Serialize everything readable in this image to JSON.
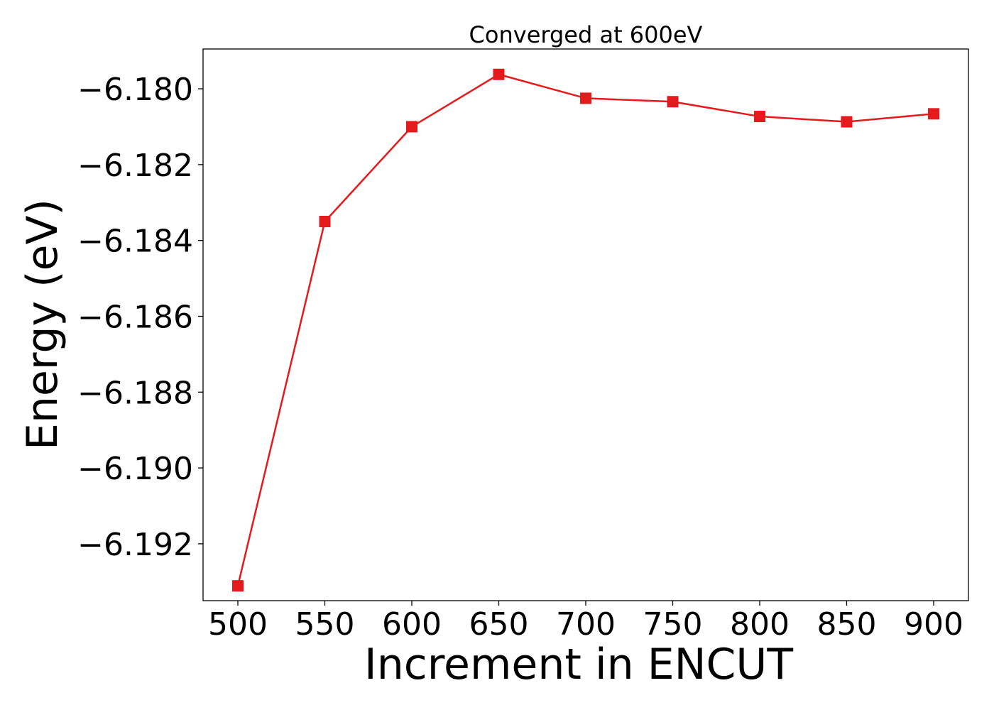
{
  "chart_data": {
    "type": "line",
    "title": "Converged at 600eV",
    "xlabel": "Increment in ENCUT",
    "ylabel": "Energy (eV)",
    "x": [
      500,
      550,
      600,
      650,
      700,
      750,
      800,
      850,
      900
    ],
    "series": [
      {
        "values": [
          -6.19311,
          -6.1835,
          -6.181,
          -6.17962,
          -6.18025,
          -6.18034,
          -6.18073,
          -6.18087,
          -6.18066
        ],
        "color": "#e41a1c",
        "marker": "square"
      }
    ],
    "xticks": [
      500,
      550,
      600,
      650,
      700,
      750,
      800,
      850,
      900
    ],
    "xtick_labels": [
      "500",
      "550",
      "600",
      "650",
      "700",
      "750",
      "800",
      "850",
      "900"
    ],
    "yticks": [
      -6.18,
      -6.182,
      -6.184,
      -6.186,
      -6.188,
      -6.19,
      -6.192
    ],
    "ytick_labels": [
      "−6.180",
      "−6.182",
      "−6.184",
      "−6.186",
      "−6.188",
      "−6.190",
      "−6.192"
    ],
    "xlim": [
      480,
      920
    ],
    "ylim": [
      -6.1935,
      -6.17895
    ],
    "grid": false,
    "legend": "none"
  }
}
